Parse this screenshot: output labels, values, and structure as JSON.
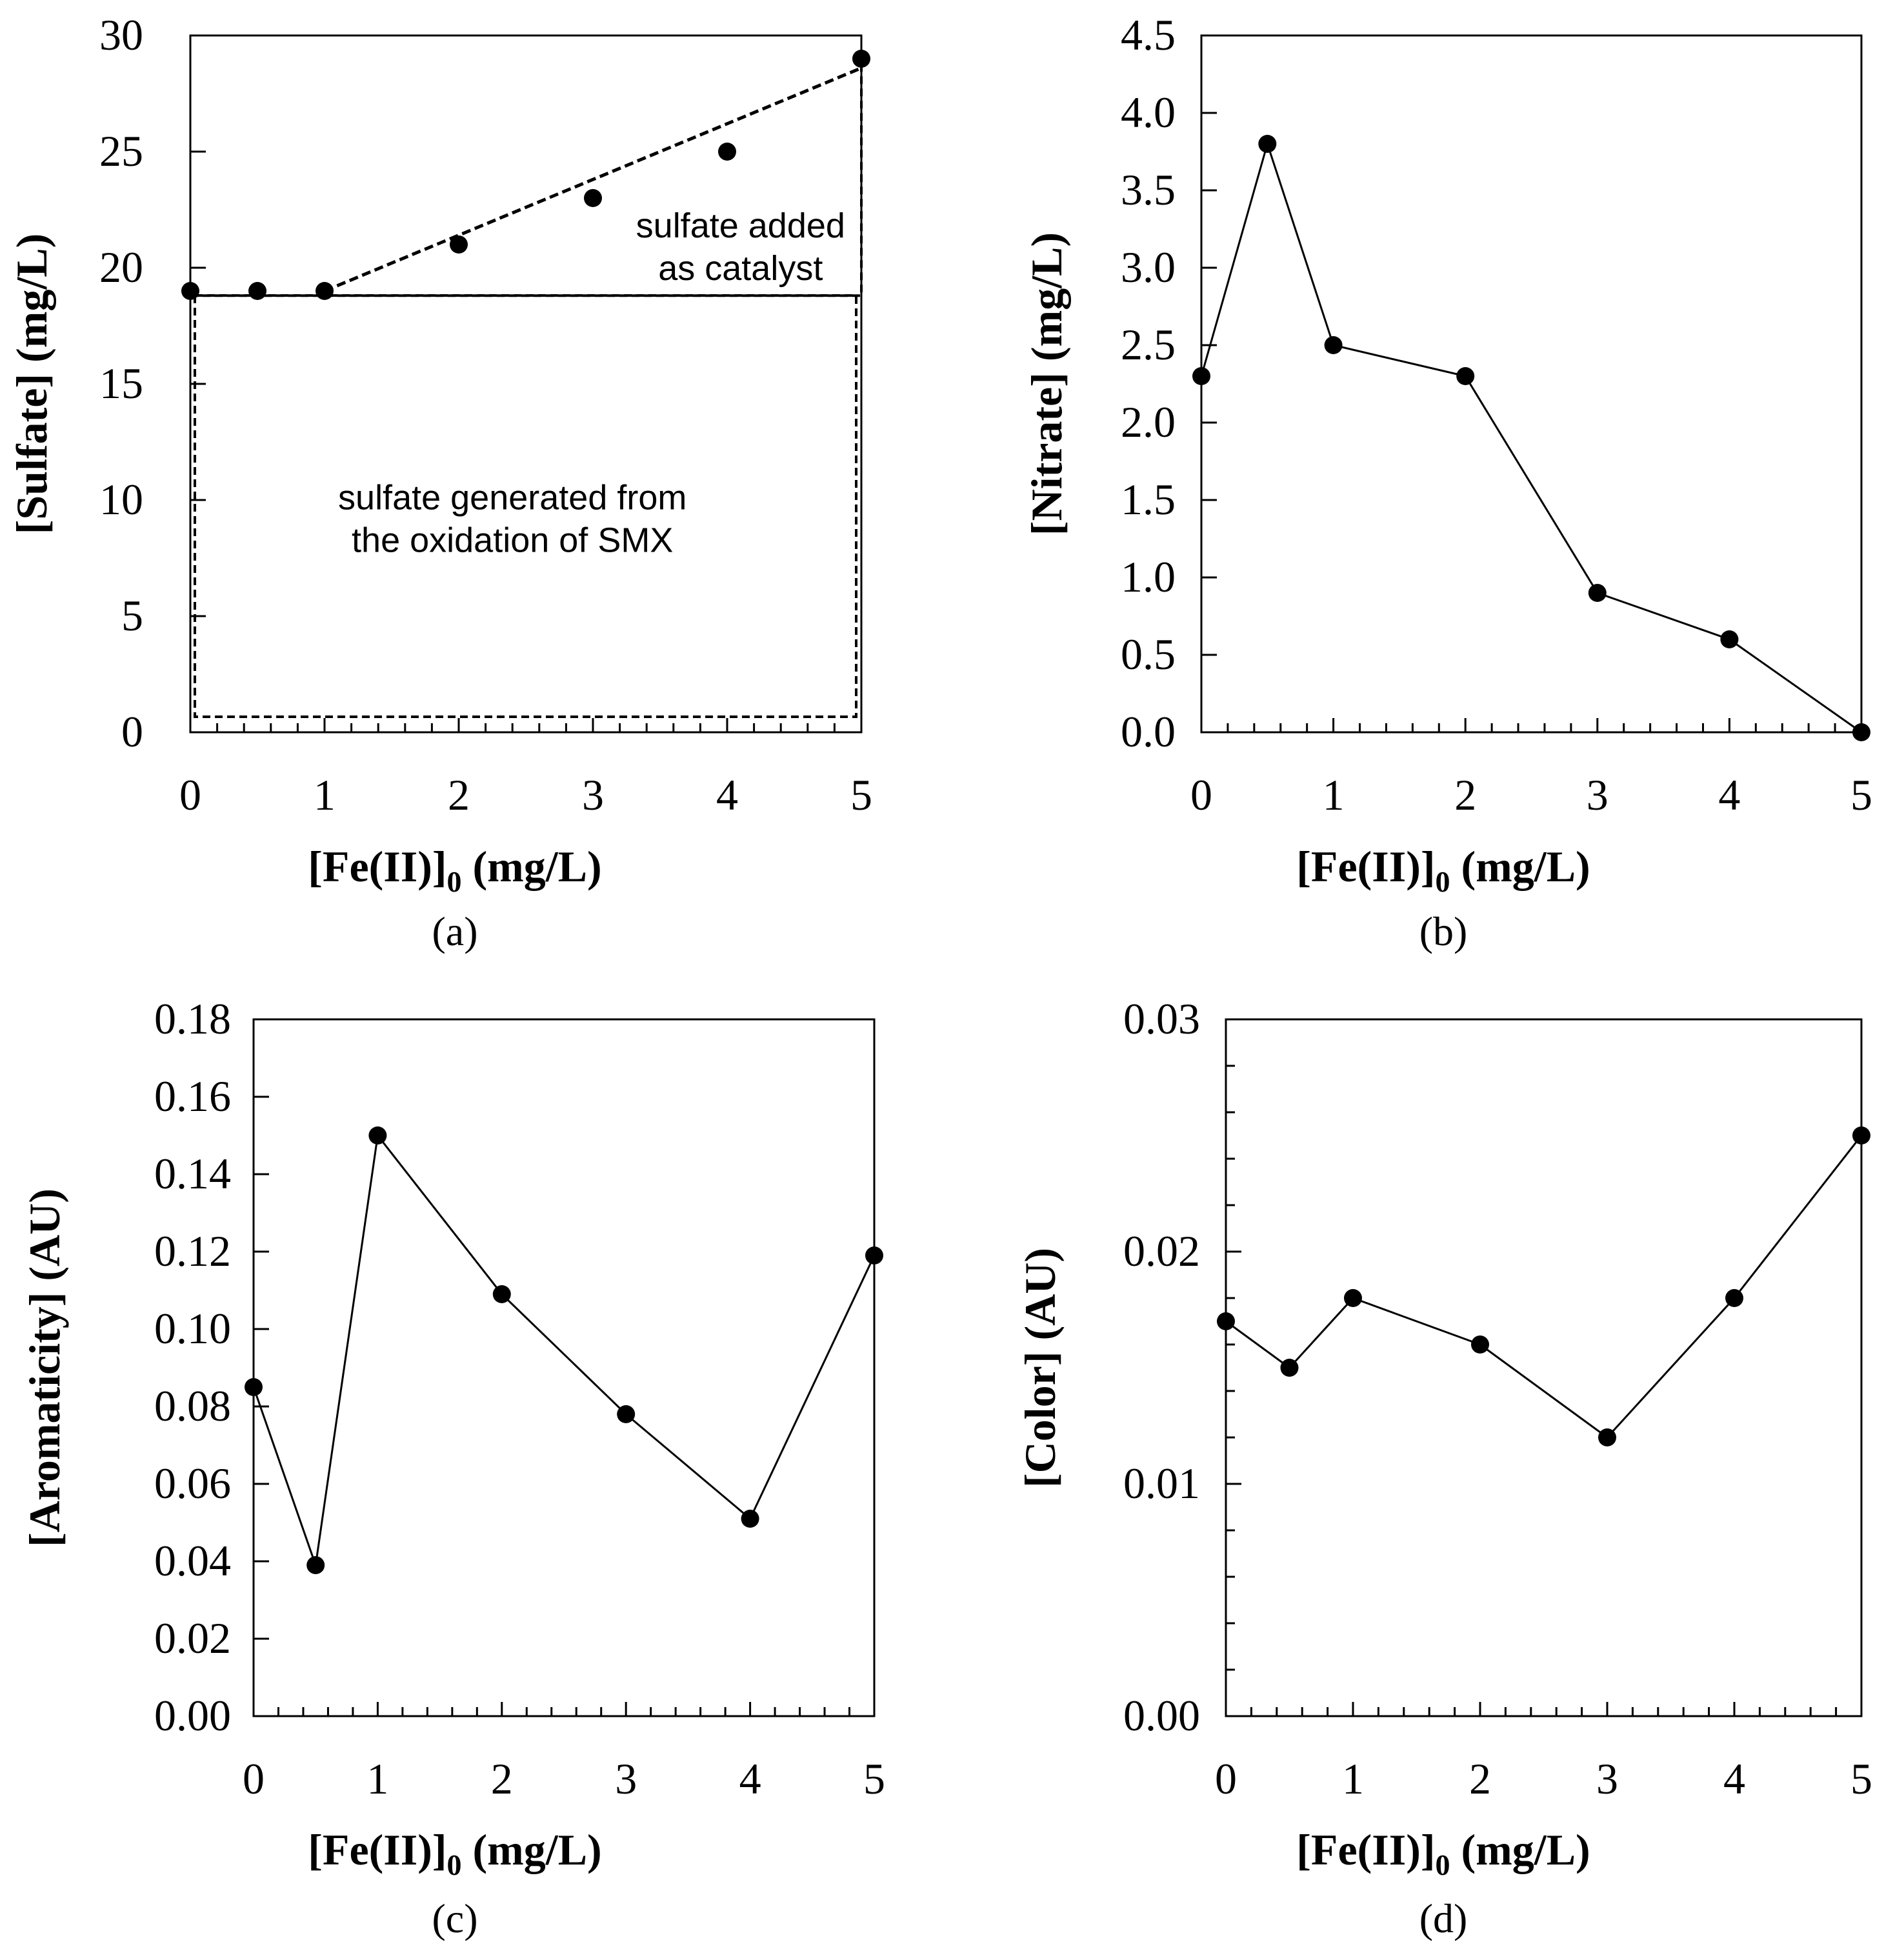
{
  "chart_data": [
    {
      "type": "scatter",
      "panel_label": "(a)",
      "title": "",
      "xlabel": "[Fe(II)]",
      "xlabel_sub": "0",
      "xlabel_unit": " (mg/L)",
      "ylabel": "[Sulfate] (mg/L)",
      "xlim": [
        0,
        5
      ],
      "ylim": [
        0,
        30
      ],
      "xticks": [
        "0",
        "1",
        "2",
        "3",
        "4",
        "5"
      ],
      "xtick_values": [
        0,
        1,
        2,
        3,
        4,
        5
      ],
      "yticks": [
        "0",
        "5",
        "10",
        "15",
        "20",
        "25",
        "30"
      ],
      "ytick_values": [
        0,
        5,
        10,
        15,
        20,
        25,
        30
      ],
      "yminor": [],
      "x": [
        0,
        0.5,
        1,
        2,
        3,
        4,
        5
      ],
      "y": [
        19,
        19,
        19,
        21,
        23,
        25,
        29
      ],
      "connect": false,
      "trendline": {
        "x": [
          1,
          5
        ],
        "y": [
          19,
          28.6
        ]
      },
      "annotations": [
        {
          "lines": [
            "sulfate added",
            "as catalyst"
          ],
          "x": 4.1,
          "y": 21.3,
          "anchor": "middle"
        },
        {
          "lines": [
            "sulfate generated from",
            "the oxidation of SMX"
          ],
          "x": 2.4,
          "y": 9.6,
          "anchor": "middle"
        }
      ]
    },
    {
      "type": "line",
      "panel_label": "(b)",
      "title": "",
      "xlabel": "[Fe(II)]",
      "xlabel_sub": "0",
      "xlabel_unit": " (mg/L)",
      "ylabel": "[Nitrate] (mg/L)",
      "xlim": [
        0,
        5
      ],
      "ylim": [
        0,
        4.5
      ],
      "xticks": [
        "0",
        "1",
        "2",
        "3",
        "4",
        "5"
      ],
      "xtick_values": [
        0,
        1,
        2,
        3,
        4,
        5
      ],
      "yticks": [
        "0.0",
        "0.5",
        "1.0",
        "1.5",
        "2.0",
        "2.5",
        "3.0",
        "3.5",
        "4.0",
        "4.5"
      ],
      "ytick_values": [
        0,
        0.5,
        1,
        1.5,
        2,
        2.5,
        3,
        3.5,
        4,
        4.5
      ],
      "yminor": [],
      "x": [
        0,
        0.5,
        1,
        2,
        3,
        4,
        5
      ],
      "y": [
        2.3,
        3.8,
        2.5,
        2.3,
        0.9,
        0.6,
        0.0
      ],
      "connect": true
    },
    {
      "type": "line",
      "panel_label": "(c)",
      "title": "",
      "xlabel": "[Fe(II)]",
      "xlabel_sub": "0",
      "xlabel_unit": " (mg/L)",
      "ylabel": "[Aromaticity] (AU)",
      "xlim": [
        0,
        5
      ],
      "ylim": [
        0,
        0.18
      ],
      "xticks": [
        "0",
        "1",
        "2",
        "3",
        "4",
        "5"
      ],
      "xtick_values": [
        0,
        1,
        2,
        3,
        4,
        5
      ],
      "yticks": [
        "0.00",
        "0.02",
        "0.04",
        "0.06",
        "0.08",
        "0.10",
        "0.12",
        "0.14",
        "0.16",
        "0.18"
      ],
      "ytick_values": [
        0,
        0.02,
        0.04,
        0.06,
        0.08,
        0.1,
        0.12,
        0.14,
        0.16,
        0.18
      ],
      "yminor": [],
      "x": [
        0,
        0.5,
        1,
        2,
        3,
        4,
        5
      ],
      "y": [
        0.085,
        0.039,
        0.15,
        0.109,
        0.078,
        0.051,
        0.119
      ],
      "connect": true
    },
    {
      "type": "line",
      "panel_label": "(d)",
      "title": "",
      "xlabel": "[Fe(II)]",
      "xlabel_sub": "0",
      "xlabel_unit": " (mg/L)",
      "ylabel": "[Color] (AU)",
      "xlim": [
        0,
        5
      ],
      "ylim": [
        0,
        0.03
      ],
      "xticks": [
        "0",
        "1",
        "2",
        "3",
        "4",
        "5"
      ],
      "xtick_values": [
        0,
        1,
        2,
        3,
        4,
        5
      ],
      "yticks": [
        "0.00",
        "0.01",
        "0.02",
        "0.03"
      ],
      "ytick_values": [
        0,
        0.01,
        0.02,
        0.03
      ],
      "yminor": [
        0.002,
        0.004,
        0.006,
        0.008,
        0.012,
        0.014,
        0.016,
        0.018,
        0.022,
        0.024,
        0.026,
        0.028
      ],
      "x": [
        0,
        0.5,
        1,
        2,
        3,
        4,
        5
      ],
      "y": [
        0.017,
        0.015,
        0.018,
        0.016,
        0.012,
        0.018,
        0.025
      ],
      "connect": true
    }
  ]
}
